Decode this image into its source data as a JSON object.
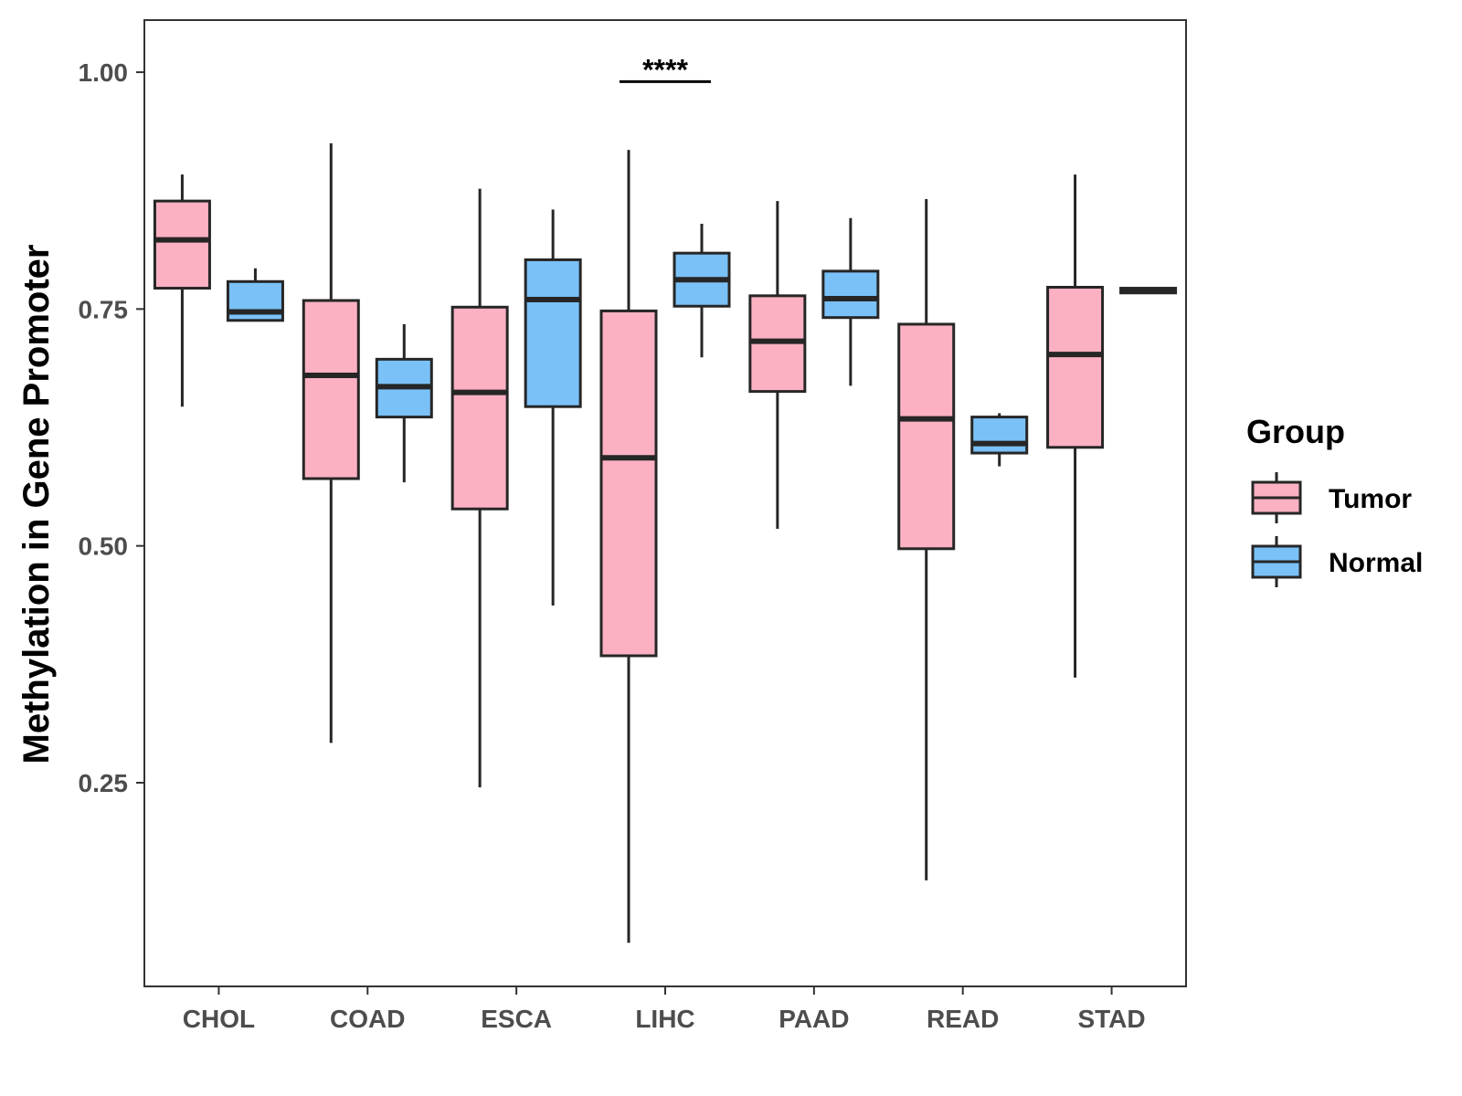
{
  "chart_data": {
    "type": "boxplot",
    "title": "",
    "xlabel": "",
    "ylabel": "Methylation in Gene Promoter",
    "ylim": [
      0.035,
      1.055
    ],
    "yticks": [
      0.25,
      0.5,
      0.75,
      1.0
    ],
    "ytick_labels": [
      "0.25",
      "0.50",
      "0.75",
      "1.00"
    ],
    "grid": false,
    "legend": {
      "title": "Group",
      "position": "right",
      "entries": [
        {
          "name": "Tumor",
          "color": "#FCB1C3"
        },
        {
          "name": "Normal",
          "color": "#7AC1F7"
        }
      ]
    },
    "categories": [
      "CHOL",
      "COAD",
      "ESCA",
      "LIHC",
      "PAAD",
      "READ",
      "STAD"
    ],
    "series": [
      {
        "name": "Tumor",
        "color": "#FCB1C3",
        "boxes": [
          {
            "min": 0.647,
            "q1": 0.772,
            "median": 0.823,
            "q3": 0.864,
            "max": 0.892
          },
          {
            "min": 0.292,
            "q1": 0.571,
            "median": 0.68,
            "q3": 0.759,
            "max": 0.925
          },
          {
            "min": 0.245,
            "q1": 0.539,
            "median": 0.662,
            "q3": 0.752,
            "max": 0.877
          },
          {
            "min": 0.081,
            "q1": 0.384,
            "median": 0.593,
            "q3": 0.748,
            "max": 0.918
          },
          {
            "min": 0.518,
            "q1": 0.663,
            "median": 0.716,
            "q3": 0.764,
            "max": 0.864
          },
          {
            "min": 0.147,
            "q1": 0.497,
            "median": 0.634,
            "q3": 0.734,
            "max": 0.866
          },
          {
            "min": 0.361,
            "q1": 0.604,
            "median": 0.702,
            "q3": 0.773,
            "max": 0.892
          }
        ]
      },
      {
        "name": "Normal",
        "color": "#7AC1F7",
        "boxes": [
          {
            "min": 0.738,
            "q1": 0.738,
            "median": 0.747,
            "q3": 0.779,
            "max": 0.793
          },
          {
            "min": 0.567,
            "q1": 0.636,
            "median": 0.668,
            "q3": 0.697,
            "max": 0.734
          },
          {
            "min": 0.437,
            "q1": 0.647,
            "median": 0.76,
            "q3": 0.802,
            "max": 0.855
          },
          {
            "min": 0.699,
            "q1": 0.753,
            "median": 0.781,
            "q3": 0.809,
            "max": 0.84
          },
          {
            "min": 0.669,
            "q1": 0.741,
            "median": 0.761,
            "q3": 0.79,
            "max": 0.846
          },
          {
            "min": 0.584,
            "q1": 0.598,
            "median": 0.608,
            "q3": 0.636,
            "max": 0.64
          },
          {
            "min": 0.767,
            "q1": 0.767,
            "median": 0.77,
            "q3": 0.772,
            "max": 0.772
          }
        ]
      }
    ],
    "annotations": [
      {
        "text": "****",
        "category": "LIHC",
        "y": 0.99
      }
    ]
  }
}
